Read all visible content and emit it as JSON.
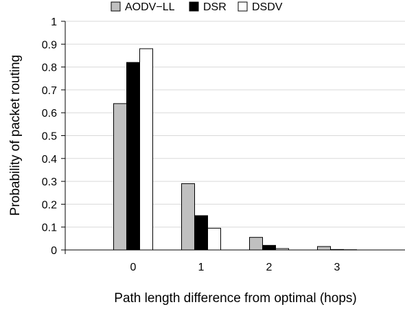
{
  "chart_data": {
    "type": "bar",
    "categories": [
      "0",
      "1",
      "2",
      "3"
    ],
    "x_range": [
      -1,
      4
    ],
    "series": [
      {
        "name": "AODV−LL",
        "values": [
          0.64,
          0.29,
          0.055,
          0.015
        ],
        "color": "#c0c0c0"
      },
      {
        "name": "DSR",
        "values": [
          0.82,
          0.15,
          0.02,
          0.002
        ],
        "color": "#000000"
      },
      {
        "name": "DSDV",
        "values": [
          0.88,
          0.095,
          0.006,
          0.001
        ],
        "color": "#ffffff"
      }
    ],
    "title": "",
    "xlabel": "Path length difference from optimal (hops)",
    "ylabel": "Probability of packet routing",
    "ylim": [
      0,
      1
    ],
    "yticks": [
      "0",
      "0.1",
      "0.2",
      "0.3",
      "0.4",
      "0.5",
      "0.6",
      "0.7",
      "0.8",
      "0.9",
      "1"
    ],
    "grid": true,
    "legend_position": "top"
  }
}
